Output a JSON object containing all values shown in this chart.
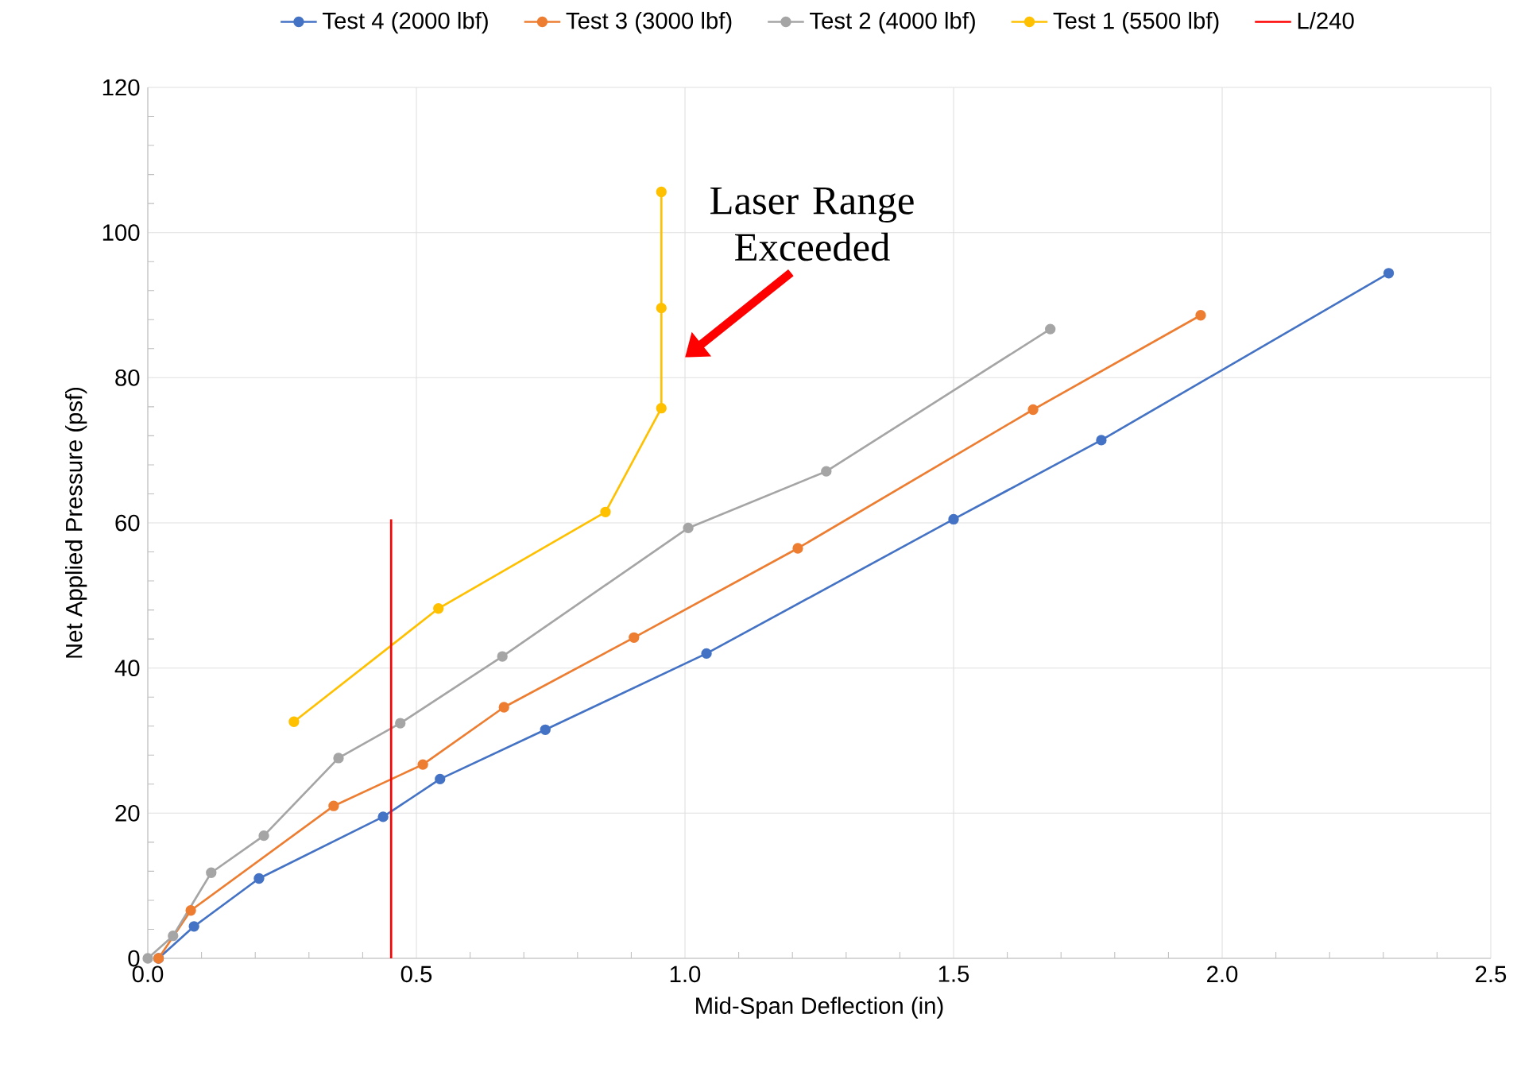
{
  "chart_data": {
    "type": "line",
    "xlabel": "Mid-Span Deflection (in)",
    "ylabel": "Net Applied Pressure (psf)",
    "xlim": [
      0,
      2.5
    ],
    "xticks": [
      {
        "value": 0,
        "label": "0.0"
      },
      {
        "value": 0.5,
        "label": "0.5"
      },
      {
        "value": 1,
        "label": "1.0"
      },
      {
        "value": 1.5,
        "label": "1.5"
      },
      {
        "value": 2,
        "label": "2.0"
      },
      {
        "value": 2.5,
        "label": "2.5"
      }
    ],
    "ylim": [
      0,
      120
    ],
    "yticks": [
      0,
      20,
      40,
      60,
      80,
      100,
      120
    ],
    "grid": true,
    "legend": "top",
    "marker": "circle",
    "series": [
      {
        "name": "Test 4 (2000 lbf)",
        "color": "#4472c4",
        "x": [
          0.02,
          0.086,
          0.207,
          0.438,
          0.544,
          0.74,
          1.04,
          1.5,
          1.775,
          2.31
        ],
        "values": [
          0,
          4.4,
          11,
          19.5,
          24.7,
          31.5,
          42,
          60.5,
          71.4,
          94.4
        ]
      },
      {
        "name": "Test 3 (3000 lbf)",
        "color": "#ed7d31",
        "x": [
          0.02,
          0.08,
          0.346,
          0.512,
          0.663,
          0.905,
          1.21,
          1.648,
          1.96
        ],
        "values": [
          0,
          6.6,
          21,
          26.7,
          34.6,
          44.2,
          56.5,
          75.6,
          88.6
        ]
      },
      {
        "name": "Test 2 (4000 lbf)",
        "color": "#a5a5a5",
        "x": [
          0,
          0.047,
          0.118,
          0.216,
          0.355,
          0.47,
          0.66,
          1.006,
          1.263,
          1.68
        ],
        "values": [
          0,
          3.1,
          11.8,
          16.9,
          27.6,
          32.4,
          41.6,
          59.3,
          67.1,
          86.7
        ]
      },
      {
        "name": "Test 1 (5500 lbf)",
        "color": "#ffc000",
        "x": [
          0.272,
          0.541,
          0.852,
          0.956,
          0.956,
          0.956
        ],
        "values": [
          32.6,
          48.2,
          61.5,
          75.8,
          89.6,
          105.6
        ]
      },
      {
        "name": "L/240",
        "color": "#ff0000",
        "marker": "none",
        "x": [
          0.453,
          0.453
        ],
        "values": [
          0,
          60.5
        ]
      }
    ],
    "annotations": [
      "Laser Range Exceeded"
    ]
  }
}
